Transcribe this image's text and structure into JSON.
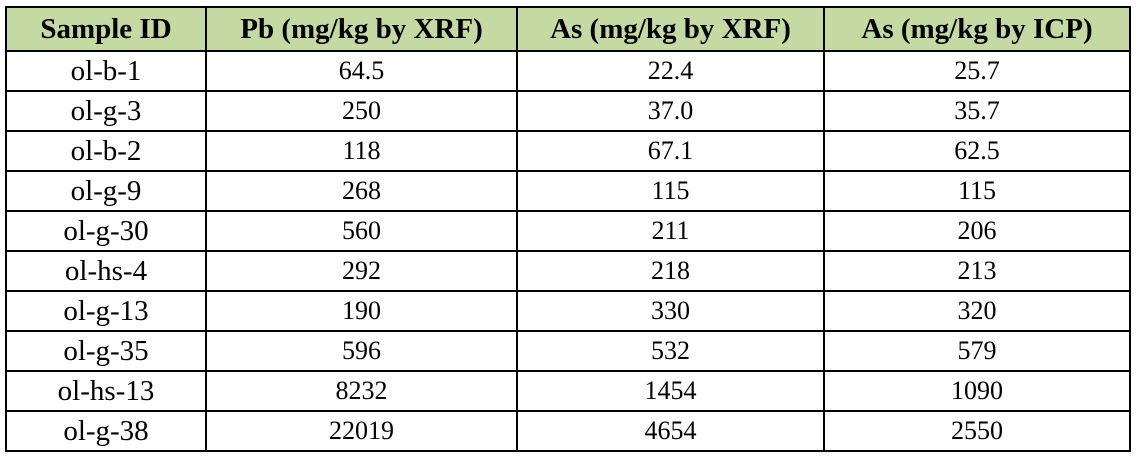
{
  "table": {
    "headers": [
      "Sample ID",
      "Pb (mg/kg by XRF)",
      "As (mg/kg by XRF)",
      "As (mg/kg by ICP)"
    ],
    "rows": [
      [
        "ol-b-1",
        "64.5",
        "22.4",
        "25.7"
      ],
      [
        "ol-g-3",
        "250",
        "37.0",
        "35.7"
      ],
      [
        "ol-b-2",
        "118",
        "67.1",
        "62.5"
      ],
      [
        "ol-g-9",
        "268",
        "115",
        "115"
      ],
      [
        "ol-g-30",
        "560",
        "211",
        "206"
      ],
      [
        "ol-hs-4",
        "292",
        "218",
        "213"
      ],
      [
        "ol-g-13",
        "190",
        "330",
        "320"
      ],
      [
        "ol-g-35",
        "596",
        "532",
        "579"
      ],
      [
        "ol-hs-13",
        "8232",
        "1454",
        "1090"
      ],
      [
        "ol-g-38",
        "22019",
        "4654",
        "2550"
      ]
    ]
  },
  "colors": {
    "header_background": "#c5d9a3",
    "border": "#000000",
    "text": "#000000"
  }
}
